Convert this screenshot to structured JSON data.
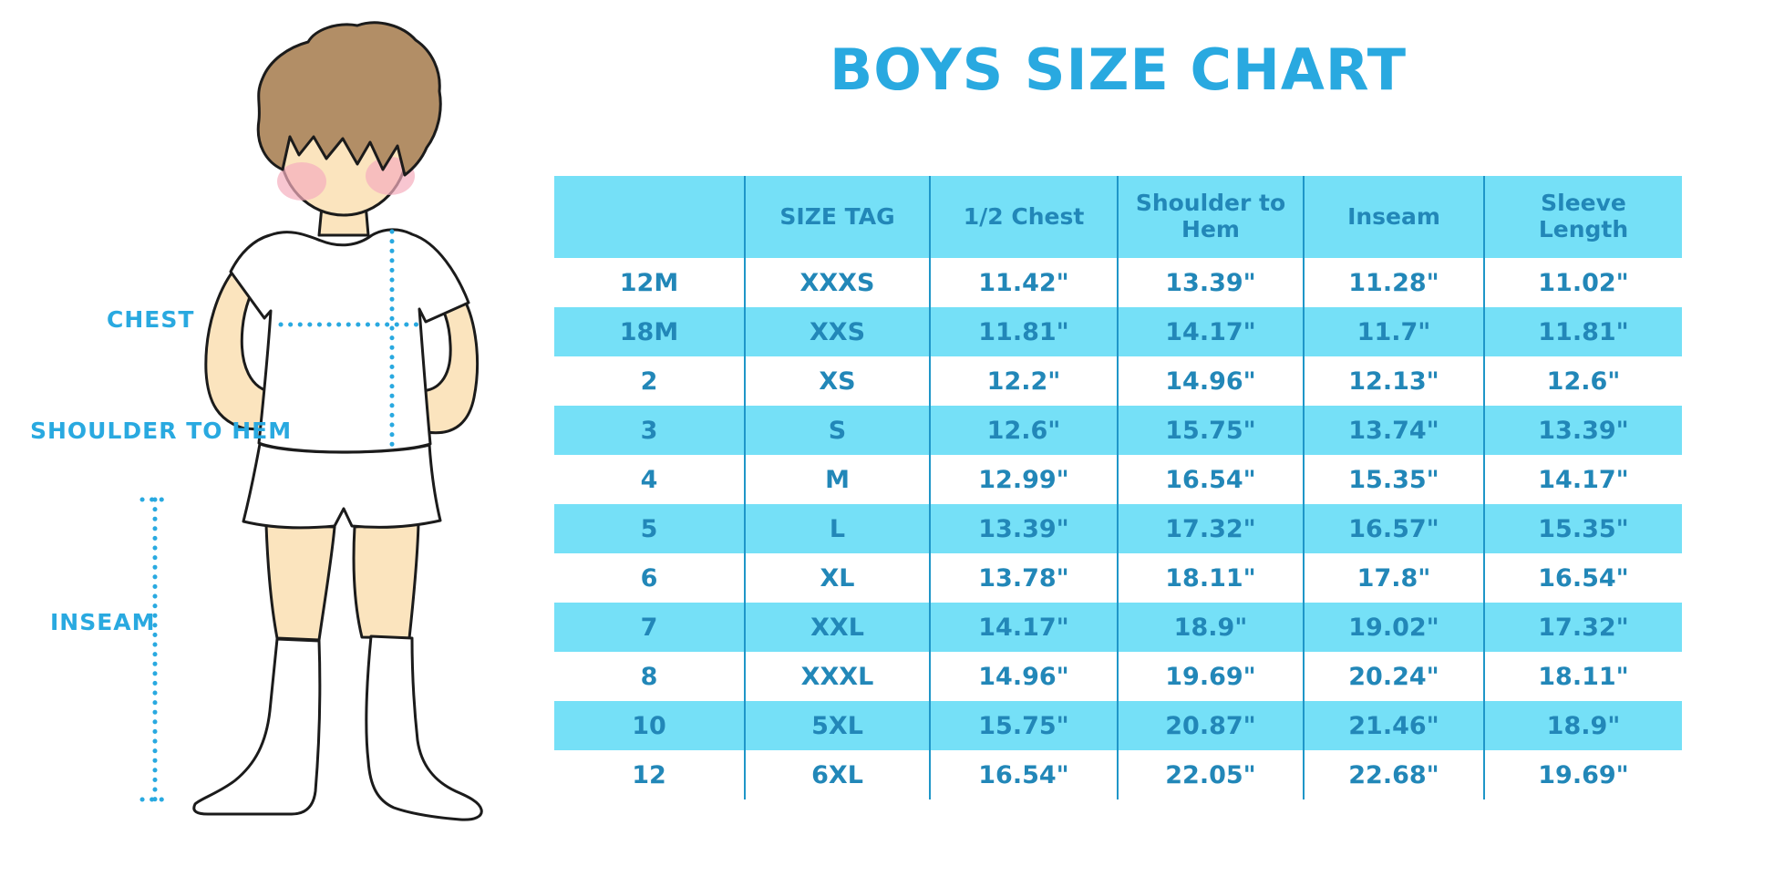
{
  "title": "BOYS SIZE CHART",
  "colors": {
    "accent": "#29A9E0",
    "table_band": "#75E0F7",
    "table_text": "#2287B8",
    "divider": "#1F96C8",
    "skin": "#FBE4BE",
    "hair": "#B28E66",
    "blush": "#F5AEBD"
  },
  "figure": {
    "labels": {
      "chest": "CHEST",
      "shoulder_to_hem": "SHOULDER TO HEM",
      "inseam": "INSEAM"
    }
  },
  "chart_data": {
    "type": "table",
    "title": "BOYS SIZE CHART",
    "columns": [
      "",
      "SIZE TAG",
      "1/2 Chest",
      "Shoulder to Hem",
      "Inseam",
      "Sleeve Length"
    ],
    "rows": [
      [
        "12M",
        "XXXS",
        "11.42\"",
        "13.39\"",
        "11.28\"",
        "11.02\""
      ],
      [
        "18M",
        "XXS",
        "11.81\"",
        "14.17\"",
        "11.7\"",
        "11.81\""
      ],
      [
        "2",
        "XS",
        "12.2\"",
        "14.96\"",
        "12.13\"",
        "12.6\""
      ],
      [
        "3",
        "S",
        "12.6\"",
        "15.75\"",
        "13.74\"",
        "13.39\""
      ],
      [
        "4",
        "M",
        "12.99\"",
        "16.54\"",
        "15.35\"",
        "14.17\""
      ],
      [
        "5",
        "L",
        "13.39\"",
        "17.32\"",
        "16.57\"",
        "15.35\""
      ],
      [
        "6",
        "XL",
        "13.78\"",
        "18.11\"",
        "17.8\"",
        "16.54\""
      ],
      [
        "7",
        "XXL",
        "14.17\"",
        "18.9\"",
        "19.02\"",
        "17.32\""
      ],
      [
        "8",
        "XXXL",
        "14.96\"",
        "19.69\"",
        "20.24\"",
        "18.11\""
      ],
      [
        "10",
        "5XL",
        "15.75\"",
        "20.87\"",
        "21.46\"",
        "18.9\""
      ],
      [
        "12",
        "6XL",
        "16.54\"",
        "22.05\"",
        "22.68\"",
        "19.69\""
      ]
    ]
  }
}
